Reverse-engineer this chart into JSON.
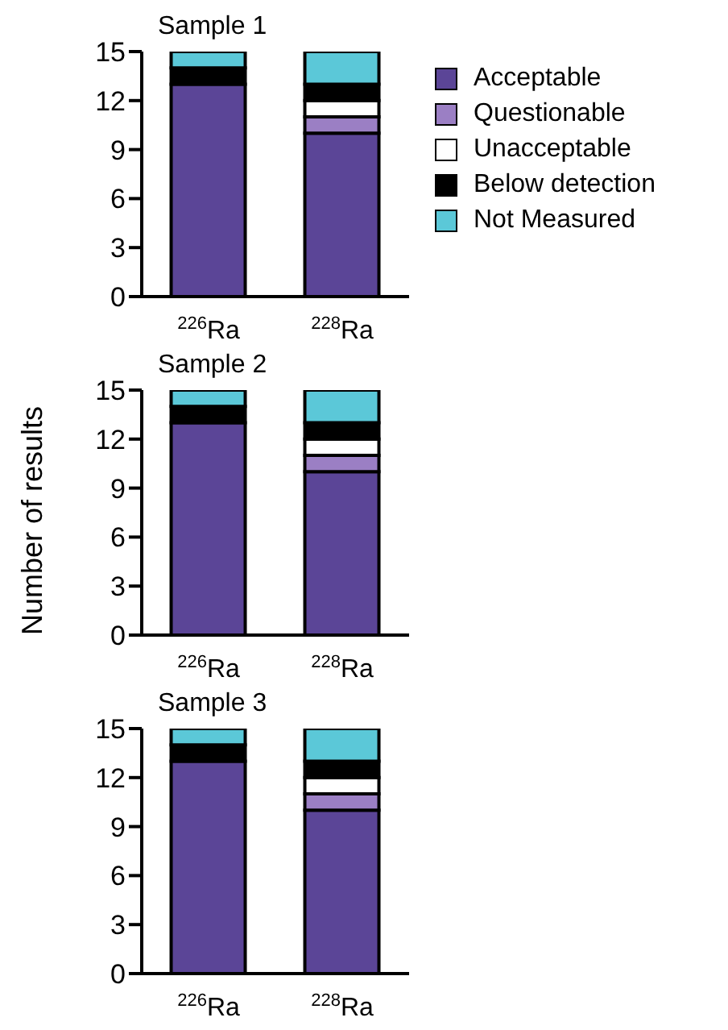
{
  "chart_data": [
    {
      "type": "bar",
      "title": "Sample 1",
      "categories": [
        "$^{226}$Ra",
        "$^{228}$Ra"
      ],
      "stacked": true,
      "ylim": [
        0,
        15
      ],
      "yticks": [
        0,
        3,
        6,
        9,
        12,
        15
      ],
      "grid": false,
      "legend": "right",
      "series": [
        {
          "name": "Acceptable",
          "color": "#5b4597",
          "values": [
            13,
            10
          ]
        },
        {
          "name": "Questionable",
          "color": "#9b7fc4",
          "values": [
            0,
            1
          ]
        },
        {
          "name": "Unacceptable",
          "color": "#ffffff",
          "values": [
            0,
            1
          ]
        },
        {
          "name": "Below detection",
          "color": "#000000",
          "values": [
            1,
            1
          ]
        },
        {
          "name": "Not Measured",
          "color": "#5bc8d8",
          "values": [
            1,
            2
          ]
        }
      ]
    },
    {
      "type": "bar",
      "title": "Sample 2",
      "ylabel": "Number of results",
      "categories": [
        "$^{226}$Ra",
        "$^{228}$Ra"
      ],
      "stacked": true,
      "ylim": [
        0,
        15
      ],
      "yticks": [
        0,
        3,
        6,
        9,
        12,
        15
      ],
      "grid": false,
      "legend": false,
      "series": [
        {
          "color": "#5b4597",
          "values": [
            13,
            10
          ]
        },
        {
          "color": "#9b7fc4",
          "values": [
            0,
            1
          ]
        },
        {
          "color": "#ffffff",
          "values": [
            0,
            1
          ]
        },
        {
          "color": "#000000",
          "values": [
            1,
            1
          ]
        },
        {
          "color": "#5bc8d8",
          "values": [
            1,
            2
          ]
        }
      ]
    },
    {
      "type": "bar",
      "title": "Sample 3",
      "categories": [
        "$^{226}$Ra",
        "$^{228}$Ra"
      ],
      "stacked": true,
      "ylim": [
        0,
        15
      ],
      "yticks": [
        0,
        3,
        6,
        9,
        12,
        15
      ],
      "grid": false,
      "legend": false,
      "series": [
        {
          "color": "#5b4597",
          "values": [
            13,
            10
          ]
        },
        {
          "color": "#9b7fc4",
          "values": [
            0,
            1
          ]
        },
        {
          "color": "#ffffff",
          "values": [
            0,
            1
          ]
        },
        {
          "color": "#000000",
          "values": [
            1,
            1
          ]
        },
        {
          "color": "#5bc8d8",
          "values": [
            1,
            2
          ]
        }
      ]
    }
  ]
}
